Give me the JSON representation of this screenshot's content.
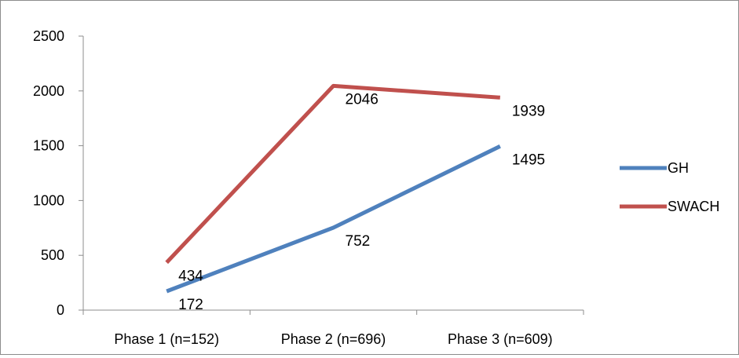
{
  "chart_data": {
    "type": "line",
    "categories": [
      "Phase 1 (n=152)",
      "Phase 2 (n=696)",
      "Phase 3 (n=609)"
    ],
    "series": [
      {
        "name": "GH",
        "values": [
          172,
          752,
          1495
        ],
        "color": "#4f81bd"
      },
      {
        "name": "SWACH",
        "values": [
          434,
          2046,
          1939
        ],
        "color": "#c0504d"
      }
    ],
    "y_ticks": [
      0,
      500,
      1000,
      1500,
      2000,
      2500
    ],
    "ylim": [
      0,
      2500
    ],
    "grid": false,
    "legend": "right",
    "data_labels": true
  }
}
